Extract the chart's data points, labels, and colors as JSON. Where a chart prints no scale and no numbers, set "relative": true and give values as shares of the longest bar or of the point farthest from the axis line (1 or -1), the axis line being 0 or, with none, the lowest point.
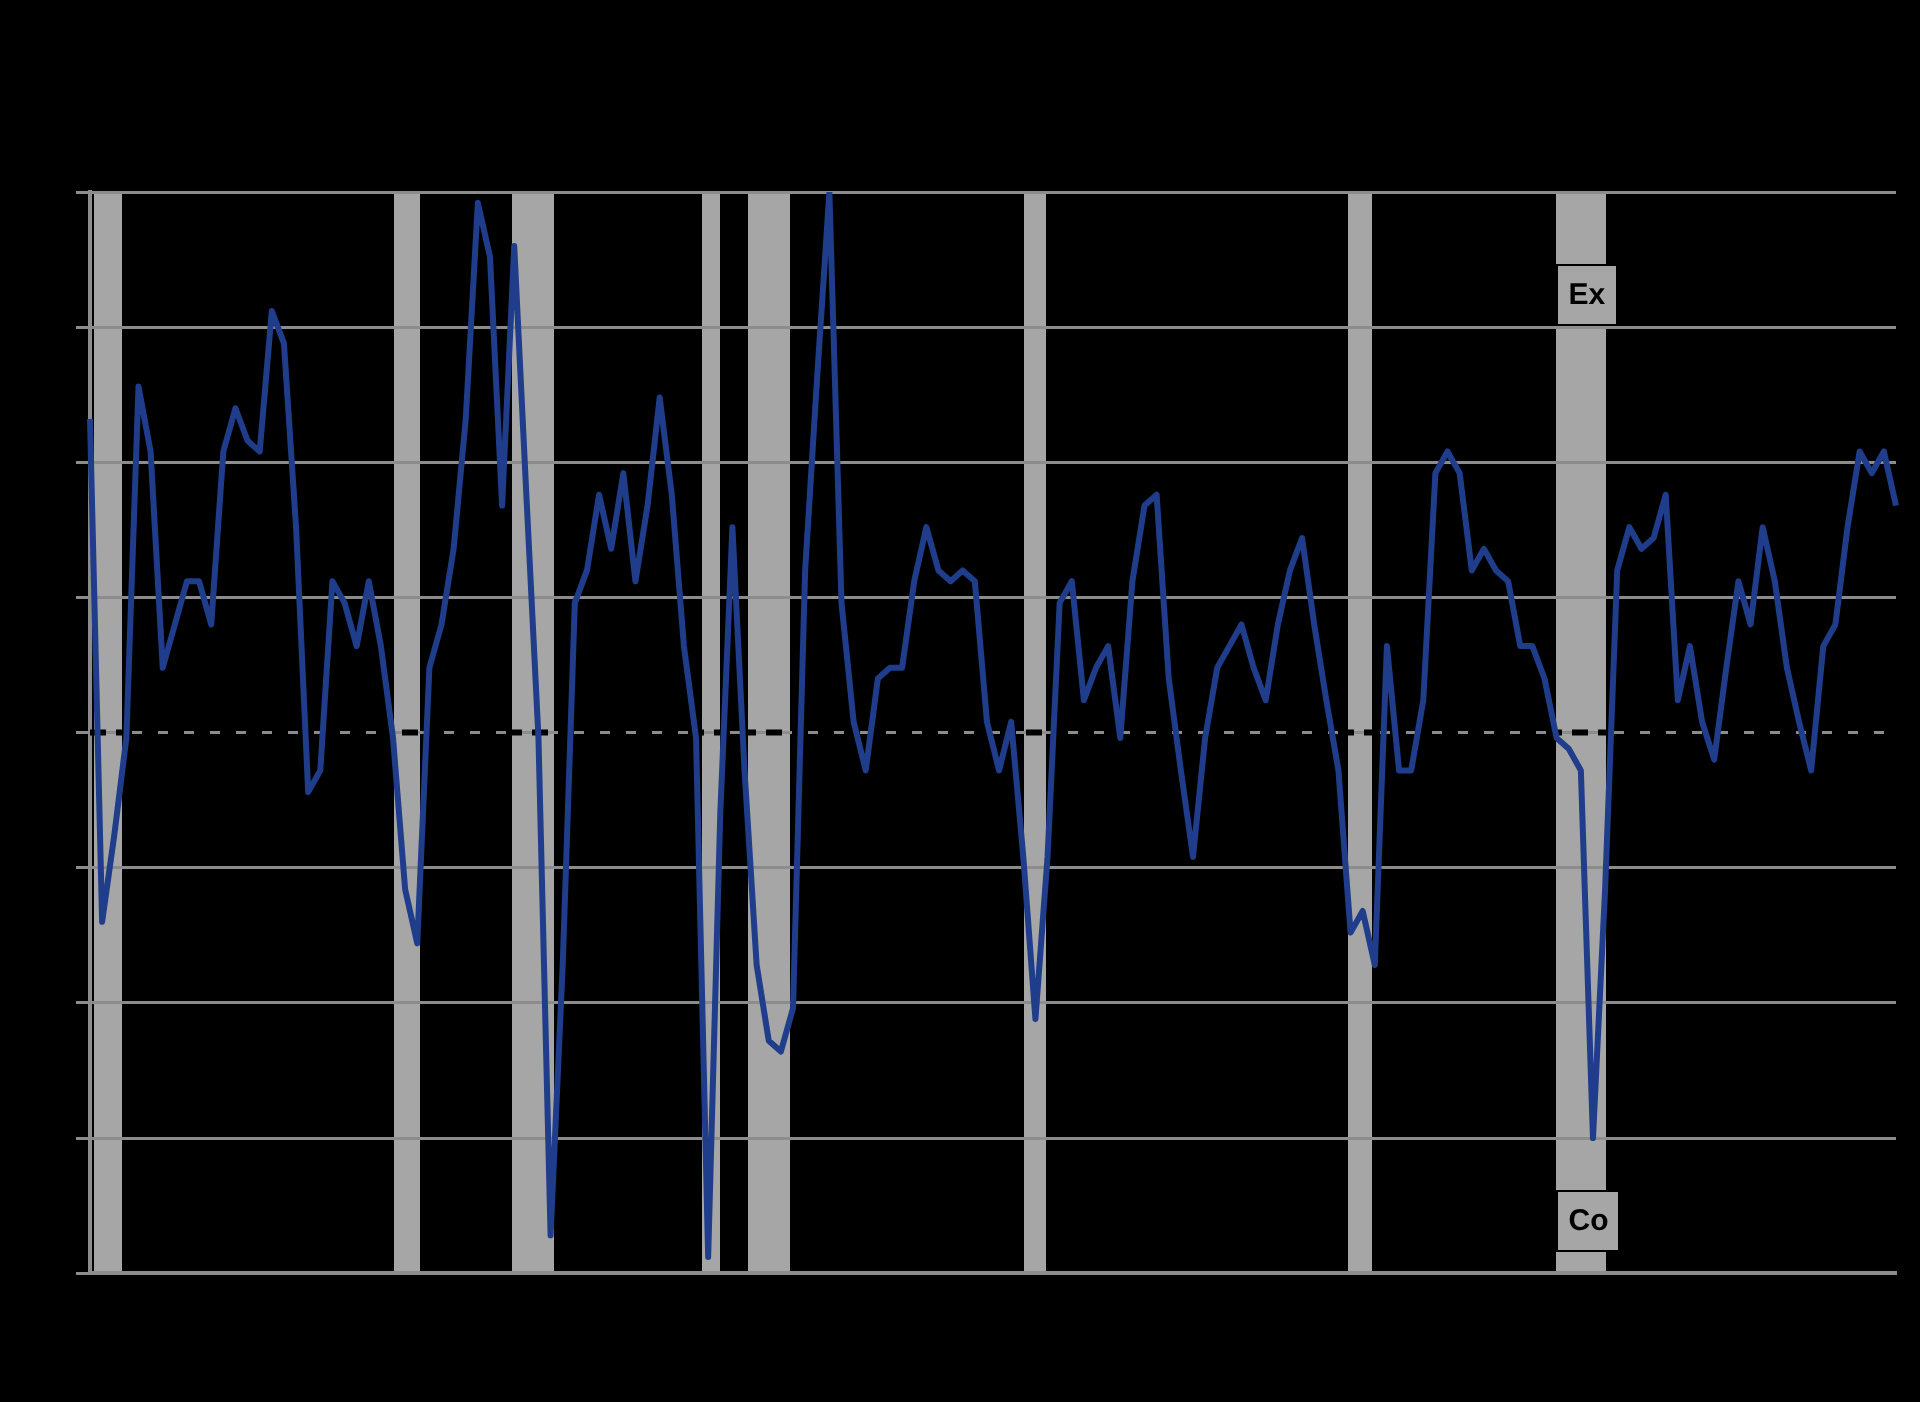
{
  "chart_data": {
    "type": "line",
    "relative": true,
    "grid": "y",
    "legend": false,
    "marker": "none",
    "line_style": "solid",
    "categories": [
      null,
      null,
      null,
      null,
      null,
      null,
      null,
      null,
      null,
      null,
      null,
      null,
      null,
      null,
      null,
      null,
      null,
      null,
      null,
      null,
      null,
      null,
      null,
      null,
      null,
      null,
      null,
      null,
      null,
      null,
      null,
      null,
      null,
      null,
      null,
      null,
      null,
      null,
      null,
      null,
      null,
      null,
      null,
      null,
      null,
      null,
      null,
      null,
      null,
      null,
      null,
      null,
      null,
      null,
      null,
      null,
      null,
      null,
      null,
      null,
      null,
      null,
      null,
      null,
      null,
      null,
      null,
      null,
      null,
      null,
      null,
      null,
      null,
      null,
      null,
      null,
      null,
      null,
      null,
      null,
      null,
      null,
      null,
      null,
      null,
      null,
      null,
      null,
      null,
      null,
      null,
      null,
      null,
      null,
      null,
      null,
      null,
      null,
      null,
      null,
      null,
      null,
      null,
      null,
      null,
      null,
      null,
      null,
      null,
      null,
      null,
      null,
      null,
      null,
      null,
      null,
      null,
      null,
      null,
      null,
      null,
      null,
      null,
      null,
      null,
      null,
      null,
      null,
      null,
      null,
      null,
      null,
      null,
      null,
      null,
      null,
      null,
      null,
      null,
      null,
      null,
      null,
      null,
      null,
      null,
      null,
      null,
      null,
      null,
      null
    ],
    "values": [
      0.58,
      -0.35,
      -0.19,
      -0.01,
      0.64,
      0.52,
      0.12,
      0.2,
      0.28,
      0.28,
      0.2,
      0.52,
      0.6,
      0.54,
      0.52,
      0.78,
      0.72,
      0.38,
      -0.11,
      -0.07,
      0.28,
      0.24,
      0.16,
      0.28,
      0.16,
      -0.01,
      -0.29,
      -0.39,
      0.12,
      0.2,
      0.34,
      0.58,
      0.98,
      0.88,
      0.42,
      0.9,
      0.44,
      -0.01,
      -0.93,
      -0.43,
      0.24,
      0.3,
      0.44,
      0.34,
      0.48,
      0.28,
      0.42,
      0.62,
      0.44,
      0.16,
      -0.01,
      -0.97,
      -0.15,
      0.38,
      -0.07,
      -0.43,
      -0.57,
      -0.59,
      -0.51,
      0.3,
      0.66,
      1,
      0.24,
      0.02,
      -0.07,
      0.1,
      0.12,
      0.12,
      0.28,
      0.38,
      0.3,
      0.28,
      0.3,
      0.28,
      0.02,
      -0.07,
      0.02,
      -0.23,
      -0.53,
      -0.23,
      0.24,
      0.28,
      0.06,
      0.12,
      0.16,
      -0.01,
      0.28,
      0.42,
      0.44,
      0.1,
      -0.07,
      -0.23,
      -0.01,
      0.12,
      0.16,
      0.2,
      0.12,
      0.06,
      0.2,
      0.3,
      0.36,
      0.2,
      0.06,
      -0.07,
      -0.37,
      -0.33,
      -0.43,
      0.16,
      -0.07,
      -0.07,
      0.06,
      0.48,
      0.52,
      0.48,
      0.3,
      0.34,
      0.3,
      0.28,
      0.16,
      0.16,
      0.1,
      -0.01,
      -0.03,
      -0.07,
      -0.75,
      -0.29,
      0.3,
      0.38,
      0.34,
      0.36,
      0.44,
      0.06,
      0.16,
      0.02,
      -0.05,
      0.12,
      0.28,
      0.2,
      0.38,
      0.28,
      0.12,
      0.02,
      -0.07,
      0.16,
      0.2,
      0.38,
      0.52,
      0.48,
      0.52,
      0.42
    ],
    "color": "#1f3d8a",
    "ref_lines": [
      {
        "axis": "y",
        "value": 0,
        "color": "#000000",
        "line_style": "dashed"
      }
    ],
    "annotations": [
      "Ex",
      "Co"
    ]
  }
}
